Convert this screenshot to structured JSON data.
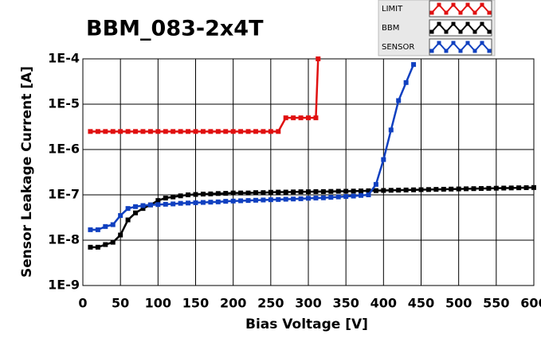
{
  "chart_data": {
    "type": "line",
    "title": "BBM_083-2x4T",
    "x_label": "Bias Voltage [V]",
    "y_label": "Sensor Leakage Current [A]",
    "xlim": [
      0,
      600
    ],
    "xticks": [
      0,
      50,
      100,
      150,
      200,
      250,
      300,
      350,
      400,
      450,
      500,
      550,
      600
    ],
    "ylim": [
      1e-09,
      0.0001
    ],
    "log_y": true,
    "grid": true,
    "legend": "top-right",
    "yticks": [
      {
        "value": 1e-09,
        "label": "1E-9"
      },
      {
        "value": 1e-08,
        "label": "1E-8"
      },
      {
        "value": 1e-07,
        "label": "1E-7"
      },
      {
        "value": 1e-06,
        "label": "1E-6"
      },
      {
        "value": 1e-05,
        "label": "1E-5"
      },
      {
        "value": 0.0001,
        "label": "1E-4"
      }
    ],
    "series": [
      {
        "name": "LIMIT",
        "color": "#e01010",
        "x": [
          10,
          20,
          30,
          40,
          50,
          60,
          70,
          80,
          90,
          100,
          110,
          120,
          130,
          140,
          150,
          160,
          170,
          180,
          190,
          200,
          210,
          220,
          230,
          240,
          250,
          260,
          270,
          280,
          290,
          300,
          310,
          313
        ],
        "values": [
          2.5e-06,
          2.5e-06,
          2.5e-06,
          2.5e-06,
          2.5e-06,
          2.5e-06,
          2.5e-06,
          2.5e-06,
          2.5e-06,
          2.5e-06,
          2.5e-06,
          2.5e-06,
          2.5e-06,
          2.5e-06,
          2.5e-06,
          2.5e-06,
          2.5e-06,
          2.5e-06,
          2.5e-06,
          2.5e-06,
          2.5e-06,
          2.5e-06,
          2.5e-06,
          2.5e-06,
          2.5e-06,
          2.5e-06,
          5e-06,
          5e-06,
          5e-06,
          5e-06,
          5e-06,
          0.0001
        ]
      },
      {
        "name": "BBM",
        "color": "#000000",
        "x": [
          10,
          20,
          30,
          40,
          50,
          60,
          70,
          80,
          90,
          100,
          110,
          120,
          130,
          140,
          150,
          160,
          170,
          180,
          190,
          200,
          210,
          220,
          230,
          240,
          250,
          260,
          270,
          280,
          290,
          300,
          310,
          320,
          330,
          340,
          350,
          360,
          370,
          380,
          390,
          400,
          410,
          420,
          430,
          440,
          450,
          460,
          470,
          480,
          490,
          500,
          510,
          520,
          530,
          540,
          550,
          560,
          570,
          580,
          590,
          600
        ],
        "values": [
          7e-09,
          7e-09,
          8e-09,
          9e-09,
          1.3e-08,
          2.8e-08,
          4e-08,
          5e-08,
          6e-08,
          7.5e-08,
          8.5e-08,
          9e-08,
          9.5e-08,
          1e-07,
          1.02e-07,
          1.04e-07,
          1.05e-07,
          1.07e-07,
          1.08e-07,
          1.1e-07,
          1.1e-07,
          1.1e-07,
          1.12e-07,
          1.12e-07,
          1.14e-07,
          1.15e-07,
          1.15e-07,
          1.16e-07,
          1.17e-07,
          1.17e-07,
          1.18e-07,
          1.18e-07,
          1.19e-07,
          1.2e-07,
          1.2e-07,
          1.21e-07,
          1.22e-07,
          1.23e-07,
          1.24e-07,
          1.25e-07,
          1.26e-07,
          1.27e-07,
          1.28e-07,
          1.29e-07,
          1.3e-07,
          1.31e-07,
          1.32e-07,
          1.33e-07,
          1.34e-07,
          1.35e-07,
          1.36e-07,
          1.37e-07,
          1.38e-07,
          1.39e-07,
          1.4e-07,
          1.41e-07,
          1.42e-07,
          1.43e-07,
          1.44e-07,
          1.45e-07
        ]
      },
      {
        "name": "SENSOR",
        "color": "#1040c0",
        "x": [
          10,
          20,
          30,
          40,
          50,
          60,
          70,
          80,
          90,
          100,
          110,
          120,
          130,
          140,
          150,
          160,
          170,
          180,
          190,
          200,
          210,
          220,
          230,
          240,
          250,
          260,
          270,
          280,
          290,
          300,
          310,
          320,
          330,
          340,
          350,
          360,
          370,
          380,
          390,
          400,
          410,
          420,
          430,
          440
        ],
        "values": [
          1.7e-08,
          1.7e-08,
          2e-08,
          2.2e-08,
          3.5e-08,
          5e-08,
          5.5e-08,
          5.8e-08,
          6e-08,
          6.1e-08,
          6.2e-08,
          6.3e-08,
          6.5e-08,
          6.6e-08,
          6.7e-08,
          6.8e-08,
          6.9e-08,
          7e-08,
          7.2e-08,
          7.3e-08,
          7.4e-08,
          7.5e-08,
          7.6e-08,
          7.7e-08,
          7.8e-08,
          7.9e-08,
          8e-08,
          8.1e-08,
          8.2e-08,
          8.4e-08,
          8.5e-08,
          8.6e-08,
          8.8e-08,
          9e-08,
          9.2e-08,
          9.4e-08,
          9.7e-08,
          1e-07,
          1.7e-07,
          6e-07,
          2.7e-06,
          1.2e-05,
          3e-05,
          7.5e-05
        ]
      }
    ]
  }
}
